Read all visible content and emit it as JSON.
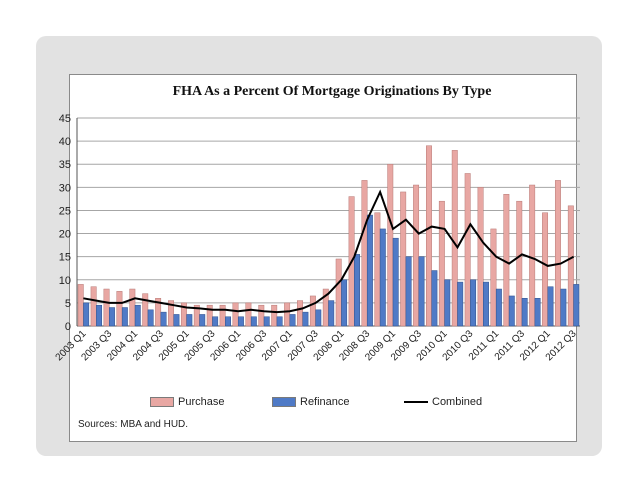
{
  "colors": {
    "purchase": "#e8a7a3",
    "refinance": "#4f7ac6",
    "combined": "#000000",
    "grid": "#a6a6a6"
  },
  "sources": "Sources:  MBA and HUD.",
  "chart_data": {
    "type": "bar",
    "title": "FHA As a Percent Of Mortgage Originations By Type",
    "xlabel": "",
    "ylabel": "",
    "ylim": [
      0,
      45
    ],
    "yticks": [
      0,
      5,
      10,
      15,
      20,
      25,
      30,
      35,
      40,
      45
    ],
    "grid": true,
    "legend_position": "bottom",
    "categories": [
      "2003 Q1",
      "2003 Q2",
      "2003 Q3",
      "2003 Q4",
      "2004 Q1",
      "2004 Q2",
      "2004 Q3",
      "2004 Q4",
      "2005 Q1",
      "2005 Q2",
      "2005 Q3",
      "2005 Q4",
      "2006 Q1",
      "2006 Q2",
      "2006 Q3",
      "2006 Q4",
      "2007 Q1",
      "2007 Q2",
      "2007 Q3",
      "2007 Q4",
      "2008 Q1",
      "2008 Q2",
      "2008 Q3",
      "2008 Q4",
      "2009 Q1",
      "2009 Q2",
      "2009 Q3",
      "2009 Q4",
      "2010 Q1",
      "2010 Q2",
      "2010 Q3",
      "2010 Q4",
      "2011 Q1",
      "2011 Q2",
      "2011 Q3",
      "2011 Q4",
      "2012 Q1",
      "2012 Q2",
      "2012 Q3"
    ],
    "tick_labels": [
      "2003 Q1",
      "2003 Q3",
      "2004 Q1",
      "2004 Q3",
      "2005 Q1",
      "2005 Q3",
      "2006 Q1",
      "2006 Q3",
      "2007 Q1",
      "2007 Q3",
      "2008 Q1",
      "2008 Q3",
      "2009 Q1",
      "2009 Q3",
      "2010 Q1",
      "2010 Q3",
      "2011 Q1",
      "2011 Q3",
      "2012 Q1",
      "2012 Q3"
    ],
    "series": [
      {
        "name": "Purchase",
        "kind": "bar",
        "values": [
          9,
          8.5,
          8,
          7.5,
          8,
          7,
          6,
          5.5,
          5,
          4.5,
          4.5,
          4.5,
          5,
          5,
          4.5,
          4.5,
          5,
          5.5,
          6.5,
          8,
          14.5,
          28,
          31.5,
          24.5,
          35,
          29,
          30.5,
          39,
          27,
          38,
          33,
          30,
          21,
          28.5,
          27,
          30.5,
          24.5,
          31.5,
          26
        ]
      },
      {
        "name": "Refinance",
        "kind": "bar",
        "values": [
          5,
          4.5,
          4,
          4,
          4.5,
          3.5,
          3,
          2.5,
          2.5,
          2.5,
          2,
          2,
          2,
          2,
          2,
          2,
          2.5,
          3,
          3.5,
          5.5,
          10,
          15.5,
          24,
          21,
          19,
          15,
          15,
          12,
          10,
          9.5,
          10,
          9.5,
          8,
          6.5,
          6,
          6,
          8.5,
          8,
          9
        ]
      },
      {
        "name": "Combined",
        "kind": "line",
        "values": [
          6,
          5.5,
          5,
          5,
          6,
          5.5,
          5,
          4.5,
          4,
          3.8,
          3.5,
          3.5,
          3.2,
          3.5,
          3.2,
          3,
          3.2,
          3.8,
          5,
          7,
          10,
          15,
          23,
          29,
          21,
          23,
          20,
          21.5,
          21,
          17,
          22,
          18,
          15,
          13.5,
          15.5,
          14.5,
          13,
          13.5,
          15
        ]
      }
    ]
  }
}
